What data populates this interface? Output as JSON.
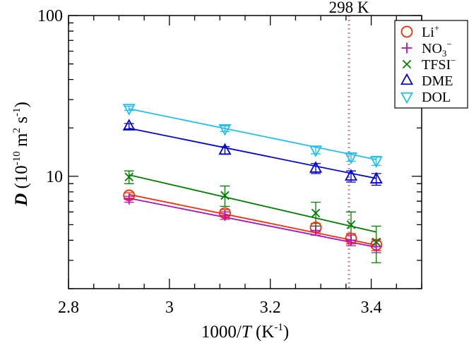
{
  "chart_data": {
    "type": "scatter",
    "title": "",
    "xlabel": {
      "prefix": "1000/",
      "italic": "T",
      "suffix": " (K",
      "sup": "-1",
      "close": ")"
    },
    "ylabel": {
      "italic": "D",
      "rest": " (10",
      "sup1": "-10",
      "mid": " m",
      "sup2": "2",
      "mid2": " s",
      "sup3": "-1",
      "close": ")"
    },
    "xlim": [
      2.8,
      3.5
    ],
    "ylim": [
      2,
      100
    ],
    "yscale": "log",
    "xticks": [
      2.8,
      3.0,
      3.2,
      3.4
    ],
    "xtick_labels": [
      "2.8",
      "3",
      "3.2",
      "3.4"
    ],
    "yticks": [
      10,
      100
    ],
    "ytick_labels": [
      "10",
      "100"
    ],
    "reference_line": {
      "x": 3.356,
      "label": "298 K",
      "color": "#c8909a"
    },
    "legend_position": "top-right",
    "series": [
      {
        "name": "Li+",
        "label_base": "Li",
        "label_sup": "+",
        "label_sub": "",
        "marker": "circle",
        "color": "#ff2a00",
        "x": [
          2.92,
          3.11,
          3.29,
          3.36,
          3.41
        ],
        "y": [
          7.6,
          5.9,
          4.8,
          4.1,
          3.75
        ],
        "err": [
          0.3,
          0.3,
          0.3,
          0.3,
          0.3
        ],
        "fit": [
          7.7,
          3.73
        ]
      },
      {
        "name": "NO3-",
        "label_base": "NO",
        "label_sup": "−",
        "label_sub": "3",
        "marker": "plus",
        "color": "#b010c0",
        "x": [
          2.92,
          3.11,
          3.29,
          3.36,
          3.41
        ],
        "y": [
          7.2,
          5.7,
          4.6,
          4.0,
          3.65
        ],
        "err": [
          0.3,
          0.3,
          0.3,
          0.3,
          0.3
        ],
        "fit": [
          7.3,
          3.62
        ]
      },
      {
        "name": "TFSI-",
        "label_base": "TFSI",
        "label_sup": "−",
        "label_sub": "",
        "marker": "x",
        "color": "#008000",
        "x": [
          2.92,
          3.11,
          3.29,
          3.36,
          3.41
        ],
        "y": [
          9.9,
          7.6,
          5.9,
          5.0,
          3.9
        ],
        "err": [
          0.9,
          1.1,
          1.0,
          1.0,
          1.0
        ],
        "fit": [
          10.2,
          4.5
        ]
      },
      {
        "name": "DME",
        "label_base": "DME",
        "label_sup": "",
        "label_sub": "",
        "marker": "triangle-up",
        "color": "#0000e0",
        "x": [
          2.92,
          3.11,
          3.29,
          3.36,
          3.41
        ],
        "y": [
          20.5,
          14.5,
          11.2,
          10.0,
          9.6
        ],
        "err": [
          0.8,
          0.8,
          0.8,
          0.8,
          0.8
        ],
        "fit": [
          19.9,
          9.7
        ]
      },
      {
        "name": "DOL",
        "label_base": "DOL",
        "label_sup": "",
        "label_sub": "",
        "marker": "triangle-down",
        "color": "#20c0f0",
        "x": [
          2.92,
          3.11,
          3.29,
          3.36,
          3.41
        ],
        "y": [
          26.5,
          19.8,
          14.6,
          13.2,
          12.5
        ],
        "err": [
          0.8,
          0.8,
          0.8,
          0.8,
          0.8
        ],
        "fit": [
          26.3,
          12.7
        ]
      }
    ]
  }
}
